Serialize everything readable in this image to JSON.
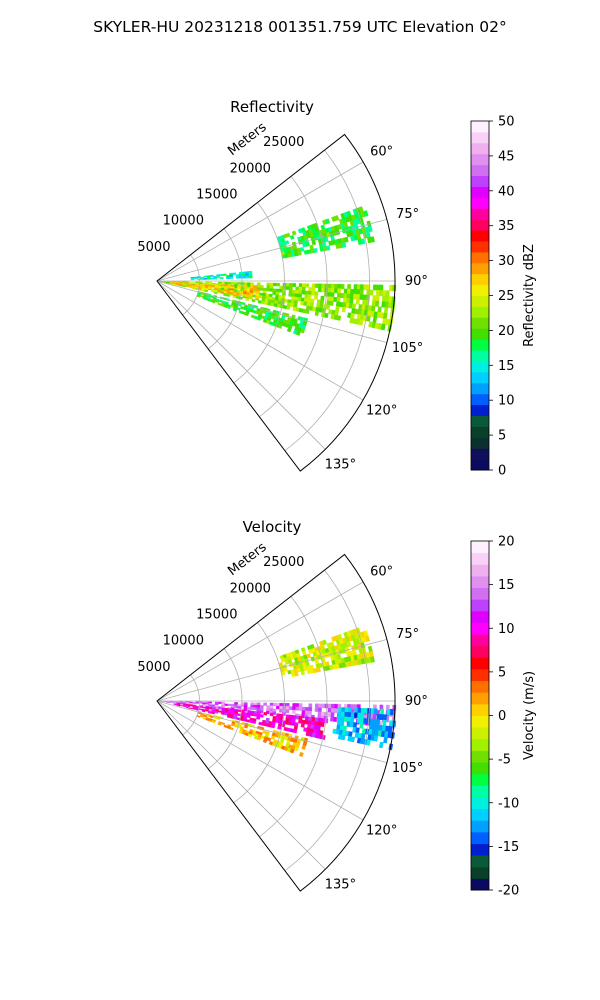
{
  "suptitle": "SKYLER-HU  20231218  001351.759 UTC Elevation 02°",
  "colors": {
    "reflectivity_scale": [
      "#0a0a60",
      "#10105a",
      "#0a3030",
      "#08402a",
      "#0a5a3a",
      "#0020d0",
      "#0060ff",
      "#00a0ff",
      "#00d0ff",
      "#00f0e0",
      "#00ffa0",
      "#00ff40",
      "#40e000",
      "#70e000",
      "#a0f000",
      "#ccf000",
      "#f0f000",
      "#ffd000",
      "#ffa000",
      "#ff7000",
      "#ff3000",
      "#ff0000",
      "#ff0060",
      "#ff00a0",
      "#ff00ff",
      "#e000ff",
      "#c040ff",
      "#d070f0",
      "#e090f0",
      "#f0b0f0",
      "#f8d0f8",
      "#fff0ff"
    ],
    "velocity_scale": [
      "#0a0a60",
      "#08402a",
      "#0a5a3a",
      "#0020d0",
      "#0060ff",
      "#00a0ff",
      "#00d0ff",
      "#00f0e0",
      "#00ffa0",
      "#00ff40",
      "#40e000",
      "#70e000",
      "#a0f000",
      "#ccf000",
      "#f0f000",
      "#ffd000",
      "#ffa000",
      "#ff7000",
      "#ff3000",
      "#ff0000",
      "#ff0060",
      "#ff00a0",
      "#ff00ff",
      "#e000ff",
      "#c040ff",
      "#d070f0",
      "#e090f0",
      "#f0b0f0",
      "#f8d0f8",
      "#fff0ff"
    ]
  },
  "chart_data": [
    {
      "type": "heatmap",
      "subtype": "polar-ppi-sector",
      "title": "Reflectivity",
      "radial_label": "Meters",
      "radial_ticks": [
        5000,
        10000,
        15000,
        20000,
        25000
      ],
      "radial_range": [
        0,
        28000
      ],
      "azimuth_range_deg": [
        52,
        143
      ],
      "azimuth_ticks": [
        "60°",
        "75°",
        "90°",
        "105°",
        "120°",
        "135°"
      ],
      "grid": true,
      "colorbar": {
        "label": "Reflectivity dBZ",
        "range": [
          0,
          50
        ],
        "ticks": [
          "0",
          "5",
          "10",
          "15",
          "20",
          "25",
          "30",
          "35",
          "40",
          "45",
          "50"
        ]
      },
      "echoes": [
        {
          "az": [
            91,
            102
          ],
          "r": [
            0,
            28000
          ],
          "value_dbz": 22
        },
        {
          "az": [
            93,
            99
          ],
          "r": [
            1500,
            12000
          ],
          "value_dbz": 27
        },
        {
          "az": [
            70,
            79
          ],
          "r": [
            15000,
            26000
          ],
          "value_dbz": 19
        },
        {
          "az": [
            84,
            88
          ],
          "r": [
            4000,
            11000
          ],
          "value_dbz": 15
        },
        {
          "az": [
            104,
            111
          ],
          "r": [
            5000,
            18000
          ],
          "value_dbz": 19
        }
      ]
    },
    {
      "type": "heatmap",
      "subtype": "polar-ppi-sector",
      "title": "Velocity",
      "radial_label": "Meters",
      "radial_ticks": [
        5000,
        10000,
        15000,
        20000,
        25000
      ],
      "radial_range": [
        0,
        28000
      ],
      "azimuth_range_deg": [
        52,
        143
      ],
      "azimuth_ticks": [
        "60°",
        "75°",
        "90°",
        "105°",
        "120°",
        "135°"
      ],
      "grid": true,
      "colorbar": {
        "label": "Velocity (m/s)",
        "range": [
          -20,
          20
        ],
        "ticks": [
          "-20",
          "-15",
          "-10",
          "-5",
          "0",
          "5",
          "10",
          "15",
          "20"
        ]
      },
      "echoes": [
        {
          "az": [
            91,
            96
          ],
          "r": [
            0,
            28000
          ],
          "value_ms": 14
        },
        {
          "az": [
            96,
            102
          ],
          "r": [
            2000,
            20000
          ],
          "value_ms": 10
        },
        {
          "az": [
            70,
            79
          ],
          "r": [
            15000,
            26000
          ],
          "value_ms": -2
        },
        {
          "az": [
            92,
            101
          ],
          "r": [
            21000,
            28000
          ],
          "value_ms": -12
        },
        {
          "az": [
            104,
            111
          ],
          "r": [
            5000,
            18000
          ],
          "value_ms": 1
        }
      ]
    }
  ]
}
